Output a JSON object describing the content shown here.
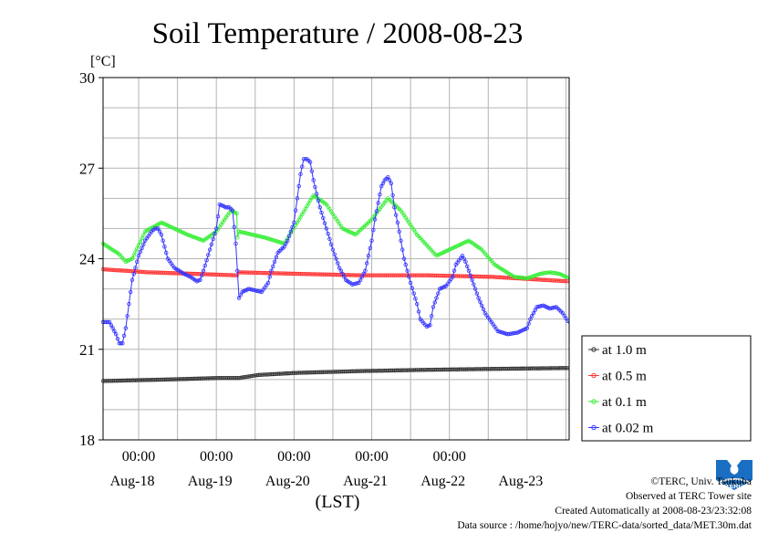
{
  "chart_data": {
    "type": "line",
    "title": "Soil Temperature / 2008-08-23",
    "ylabel": "[°C]",
    "xlabel": "(LST)",
    "ylim": [
      18,
      30
    ],
    "yticks": [
      18,
      21,
      24,
      27,
      30
    ],
    "x_unit": "hours from 2008-08-17 13:00 LST",
    "xlim": [
      0,
      144
    ],
    "xticks_time": [
      {
        "x": 11,
        "label": "00:00"
      },
      {
        "x": 35,
        "label": "00:00"
      },
      {
        "x": 59,
        "label": "00:00"
      },
      {
        "x": 83,
        "label": "00:00"
      },
      {
        "x": 107,
        "label": "00:00"
      }
    ],
    "xticks_date": [
      {
        "x": 11,
        "label": "Aug-18"
      },
      {
        "x": 35,
        "label": "Aug-19"
      },
      {
        "x": 59,
        "label": "Aug-20"
      },
      {
        "x": 83,
        "label": "Aug-21"
      },
      {
        "x": 107,
        "label": "Aug-22"
      },
      {
        "x": 131,
        "label": "Aug-23"
      }
    ],
    "grid": true,
    "legend": "right",
    "series": [
      {
        "name": "at 1.0 m",
        "color": "#333333",
        "points": [
          [
            0,
            19.95
          ],
          [
            20,
            20.0
          ],
          [
            36,
            20.05
          ],
          [
            42,
            20.05
          ],
          [
            48,
            20.15
          ],
          [
            60,
            20.22
          ],
          [
            80,
            20.28
          ],
          [
            100,
            20.32
          ],
          [
            120,
            20.35
          ],
          [
            144,
            20.38
          ]
        ]
      },
      {
        "name": "at 0.5 m",
        "color": "#ff3333",
        "points": [
          [
            0,
            23.65
          ],
          [
            14,
            23.55
          ],
          [
            28,
            23.5
          ],
          [
            41.4,
            23.45
          ],
          [
            42,
            23.55
          ],
          [
            60,
            23.5
          ],
          [
            80,
            23.45
          ],
          [
            100,
            23.45
          ],
          [
            120,
            23.4
          ],
          [
            144,
            23.25
          ]
        ]
      },
      {
        "name": "at 0.1 m",
        "color": "#33ee33",
        "points": [
          [
            0,
            24.5
          ],
          [
            5,
            24.15
          ],
          [
            7,
            23.9
          ],
          [
            9,
            24.0
          ],
          [
            13,
            24.9
          ],
          [
            18,
            25.2
          ],
          [
            26,
            24.8
          ],
          [
            31,
            24.6
          ],
          [
            35,
            24.9
          ],
          [
            39.5,
            25.6
          ],
          [
            41.3,
            25.5
          ],
          [
            41.5,
            24.7
          ],
          [
            42,
            24.9
          ],
          [
            50,
            24.7
          ],
          [
            56,
            24.5
          ],
          [
            60,
            25.2
          ],
          [
            65,
            26.1
          ],
          [
            69,
            25.8
          ],
          [
            74,
            25.0
          ],
          [
            78,
            24.8
          ],
          [
            83,
            25.3
          ],
          [
            88,
            26.0
          ],
          [
            92,
            25.6
          ],
          [
            97,
            24.8
          ],
          [
            103,
            24.1
          ],
          [
            107,
            24.3
          ],
          [
            113,
            24.6
          ],
          [
            117,
            24.3
          ],
          [
            121,
            23.8
          ],
          [
            127,
            23.4
          ],
          [
            131,
            23.35
          ],
          [
            135,
            23.5
          ],
          [
            138,
            23.55
          ],
          [
            141,
            23.5
          ],
          [
            144,
            23.35
          ]
        ]
      },
      {
        "name": "at 0.02 m",
        "color": "#3333ff",
        "points": [
          [
            0,
            21.9
          ],
          [
            2,
            21.9
          ],
          [
            4,
            21.5
          ],
          [
            5,
            21.2
          ],
          [
            6,
            21.2
          ],
          [
            7,
            21.7
          ],
          [
            8,
            22.5
          ],
          [
            9,
            23.3
          ],
          [
            11,
            24.1
          ],
          [
            13,
            24.6
          ],
          [
            15,
            24.9
          ],
          [
            16,
            25.0
          ],
          [
            17,
            25.0
          ],
          [
            18,
            24.8
          ],
          [
            19,
            24.4
          ],
          [
            20,
            24.0
          ],
          [
            22,
            23.7
          ],
          [
            25,
            23.5
          ],
          [
            27,
            23.4
          ],
          [
            29,
            23.25
          ],
          [
            30,
            23.3
          ],
          [
            31,
            23.6
          ],
          [
            33,
            24.3
          ],
          [
            35,
            25.0
          ],
          [
            36,
            25.8
          ],
          [
            38,
            25.7
          ],
          [
            39,
            25.7
          ],
          [
            40,
            25.6
          ],
          [
            41,
            24.5
          ],
          [
            41.5,
            23.6
          ],
          [
            42,
            22.7
          ],
          [
            43,
            22.9
          ],
          [
            45,
            23.0
          ],
          [
            47,
            22.95
          ],
          [
            49,
            22.9
          ],
          [
            51,
            23.2
          ],
          [
            52,
            23.6
          ],
          [
            53,
            23.9
          ],
          [
            54,
            24.2
          ],
          [
            56,
            24.4
          ],
          [
            57,
            24.6
          ],
          [
            58,
            24.9
          ],
          [
            59,
            25.2
          ],
          [
            60,
            26.0
          ],
          [
            61,
            26.8
          ],
          [
            62,
            27.3
          ],
          [
            63,
            27.3
          ],
          [
            64,
            27.2
          ],
          [
            65,
            26.6
          ],
          [
            67,
            25.7
          ],
          [
            69,
            25.0
          ],
          [
            71,
            24.3
          ],
          [
            73,
            23.7
          ],
          [
            75,
            23.3
          ],
          [
            77,
            23.15
          ],
          [
            79,
            23.2
          ],
          [
            81,
            23.6
          ],
          [
            83,
            24.6
          ],
          [
            84,
            25.3
          ],
          [
            86,
            26.4
          ],
          [
            87,
            26.6
          ],
          [
            88,
            26.7
          ],
          [
            89,
            26.5
          ],
          [
            90,
            25.7
          ],
          [
            91,
            25.2
          ],
          [
            92,
            24.6
          ],
          [
            93,
            24.0
          ],
          [
            95,
            23.2
          ],
          [
            97,
            22.5
          ],
          [
            98,
            22.0
          ],
          [
            100,
            21.75
          ],
          [
            101,
            21.8
          ],
          [
            102,
            22.4
          ],
          [
            104,
            23.0
          ],
          [
            106,
            23.1
          ],
          [
            108,
            23.4
          ],
          [
            109,
            23.8
          ],
          [
            111,
            24.1
          ],
          [
            112,
            23.9
          ],
          [
            114,
            23.3
          ],
          [
            116,
            22.7
          ],
          [
            118,
            22.2
          ],
          [
            120,
            21.9
          ],
          [
            122,
            21.6
          ],
          [
            125,
            21.5
          ],
          [
            128,
            21.55
          ],
          [
            131,
            21.7
          ],
          [
            132,
            22.0
          ],
          [
            134,
            22.4
          ],
          [
            136,
            22.45
          ],
          [
            138,
            22.35
          ],
          [
            140,
            22.4
          ],
          [
            142,
            22.2
          ],
          [
            144,
            21.85
          ]
        ]
      }
    ]
  },
  "credits": {
    "copyright": "©TERC, Univ. Tsukuba",
    "observed": "Observed at TERC Tower site",
    "created": "Created Automatically at 2008-08-23/23:32:08",
    "source": "Data source : /home/hojyo/new/TERC-data/sorted_data/MET.30m.dat",
    "logo_text": "TERC"
  }
}
